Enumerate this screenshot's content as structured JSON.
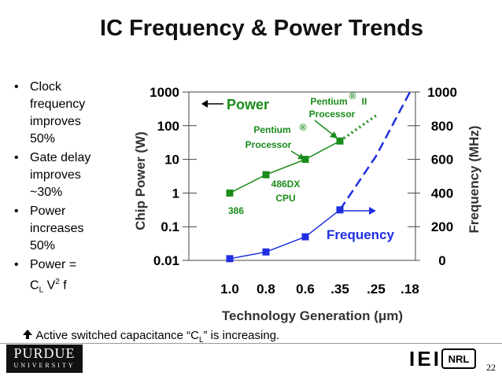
{
  "slide": {
    "title": "IC Frequency & Power Trends",
    "bullets": [
      [
        "Clock frequency improves 50%"
      ],
      [
        "Gate delay improves ~30%"
      ],
      [
        "Power increases 50%"
      ],
      [
        "Power =",
        "C",
        "L",
        " V",
        "2",
        " f"
      ]
    ],
    "footnote": [
      "Active switched capacitance “C",
      "L",
      "” is increasing."
    ],
    "logo_left": [
      "PURDUE",
      "UNIVERSITY"
    ],
    "logo_right": [
      "IEI",
      "NRL"
    ],
    "page_number": "22"
  },
  "chart_data": {
    "type": "line",
    "x_label": "Technology Generation (μm)",
    "y_label": "Chip Power (W)",
    "y2_label": "Frequency (MHz)",
    "categories": [
      "1.0",
      "0.8",
      "0.6",
      ".35",
      ".25",
      ".18"
    ],
    "ylog": true,
    "ylim": [
      0.01,
      1000
    ],
    "yticks": [
      0.01,
      0.1,
      1,
      10,
      100,
      1000
    ],
    "y2lim": [
      0,
      1000
    ],
    "y2ticks": [
      0,
      200,
      400,
      600,
      800,
      1000
    ],
    "series": [
      {
        "name": "Power",
        "color": "#1a8c1a",
        "values": [
          1,
          3.5,
          10,
          35,
          null,
          null
        ],
        "markers": true,
        "style": "solid"
      },
      {
        "color": "#1a8c1a",
        "values": [
          null,
          null,
          null,
          35,
          200,
          null
        ],
        "markers": false,
        "style": "dotted"
      },
      {
        "name": "Frequency",
        "color": "#1f2fe0",
        "axis": "y2",
        "values": [
          10,
          50,
          140,
          300,
          null,
          null
        ],
        "markers": true,
        "style": "solid"
      },
      {
        "color": "#1f2fe0",
        "axis": "y2",
        "values": [
          null,
          null,
          null,
          300,
          620,
          1000
        ],
        "markers": false,
        "style": "dashed"
      }
    ],
    "annotations": [
      "386",
      "486DX",
      "CPU",
      "Pentium",
      "®",
      "Processor",
      "Pentium",
      "®",
      "II",
      "Processor"
    ]
  }
}
